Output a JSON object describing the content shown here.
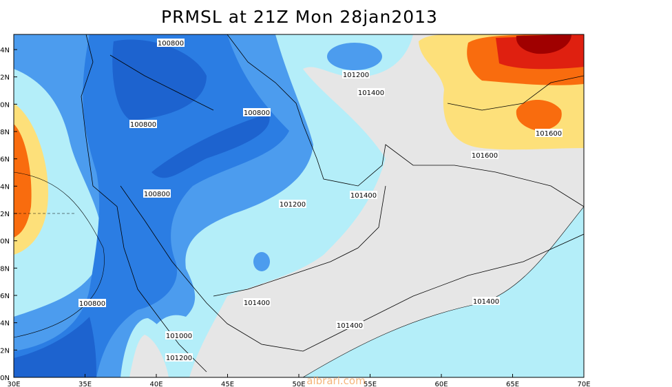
{
  "title": "PRMSL at 21Z Mon 28jan2013",
  "x_labels": [
    "30E",
    "35E",
    "40E",
    "45E",
    "50E",
    "55E",
    "60E",
    "65E",
    "70E"
  ],
  "y_labels": [
    "4N",
    "2N",
    "0N",
    "8N",
    "6N",
    "4N",
    "2N",
    "0N",
    "8N",
    "6N",
    "4N",
    "2N",
    "0N"
  ],
  "contour_labels": [
    "100800",
    "101200",
    "101400",
    "100800",
    "100800",
    "101600",
    "101600",
    "100800",
    "101200",
    "101400",
    "101400",
    "101400",
    "100800",
    "101400",
    "101000",
    "101200"
  ],
  "watermark": "albrari.com"
}
